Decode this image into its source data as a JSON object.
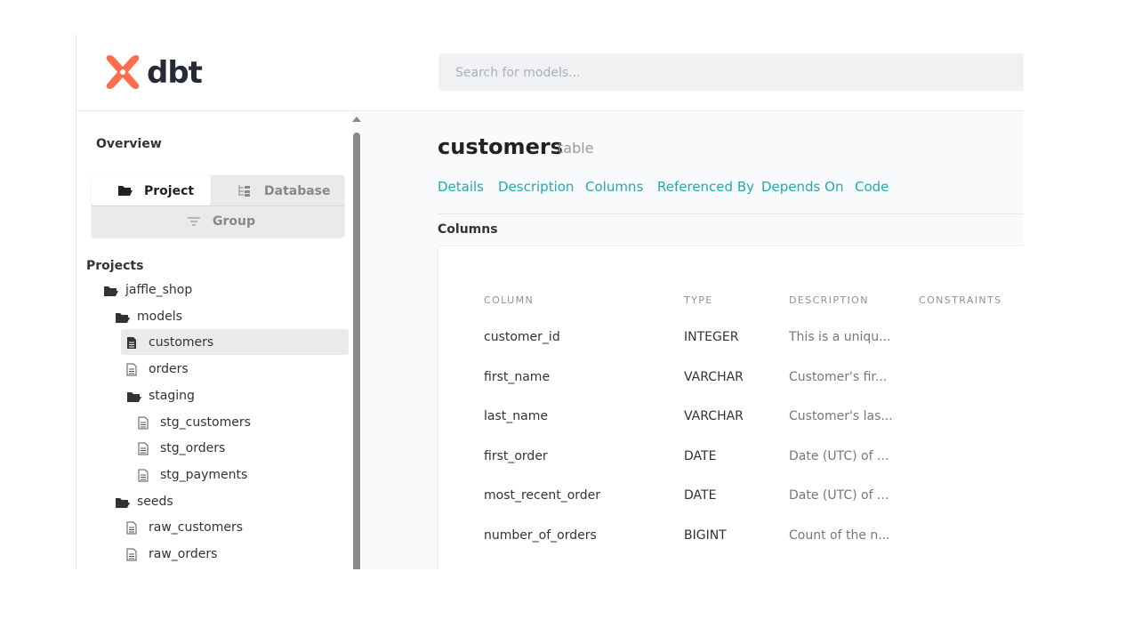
{
  "header": {
    "logo": "dbt",
    "search_placeholder": "Search for models..."
  },
  "sidebar": {
    "overview": "Overview",
    "tabs": [
      "Project",
      "Database",
      "Group"
    ],
    "projects_label": "Projects",
    "tree": [
      {
        "label": "jaffle_shop",
        "children": [
          {
            "label": "models",
            "children": [
              {
                "label": "customers",
                "active": true
              },
              {
                "label": "orders"
              },
              {
                "label": "staging",
                "children": [
                  {
                    "label": "stg_customers"
                  },
                  {
                    "label": "stg_orders"
                  },
                  {
                    "label": "stg_payments"
                  }
                ]
              }
            ]
          },
          {
            "label": "seeds",
            "children": [
              {
                "label": "raw_customers"
              },
              {
                "label": "raw_orders"
              }
            ]
          }
        ]
      }
    ]
  },
  "main": {
    "title": "customers",
    "subtitle": "table",
    "nav": [
      "Details",
      "Description",
      "Columns",
      "Referenced By",
      "Depends On",
      "Code"
    ],
    "section": "Columns"
  },
  "table": {
    "header": [
      "COLUMN",
      "TYPE",
      "DESCRIPTION",
      "CONSTRAINTS"
    ],
    "rows": [
      [
        "customer_id",
        "INTEGER",
        "This is a uniqu..."
      ],
      [
        "first_name",
        "VARCHAR",
        "Customer's fir..."
      ],
      [
        "last_name",
        "VARCHAR",
        "Customer's las..."
      ],
      [
        "first_order",
        "DATE",
        "Date (UTC) of ..."
      ],
      [
        "most_recent_order",
        "DATE",
        "Date (UTC) of ..."
      ],
      [
        "number_of_orders",
        "BIGINT",
        "Count of the n..."
      ]
    ]
  }
}
